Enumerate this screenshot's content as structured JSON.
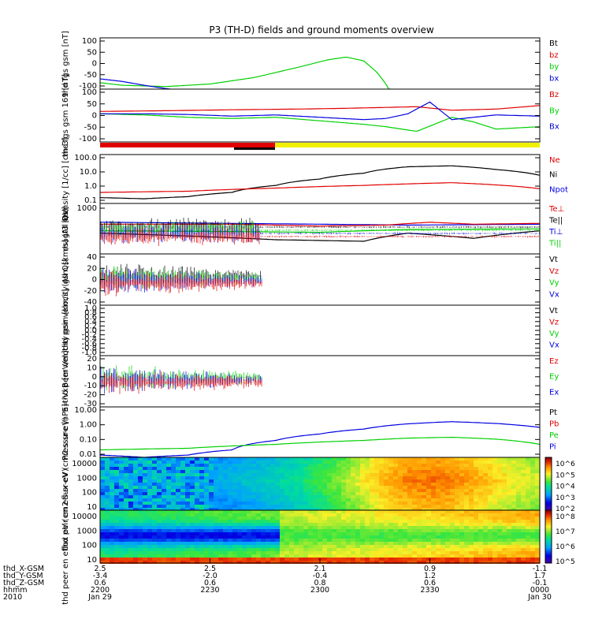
{
  "title": "P3 (TH-D) fields and ground moments overview",
  "colors": {
    "black": "#000000",
    "red": "#e00000",
    "green": "#00d000",
    "blue": "#0000e0",
    "yellow": "#f0f000",
    "frame": "#000000"
  },
  "chart_data": [
    {
      "id": "fgs",
      "type": "line",
      "ylabel": "thd fgs gsm [nT]",
      "ylim": [
        -100,
        100
      ],
      "yticks": [
        "100",
        "50",
        "0",
        "-50",
        "-100"
      ],
      "legend": [
        {
          "name": "Bt",
          "color": "black"
        },
        {
          "name": "bz",
          "color": "red"
        },
        {
          "name": "by",
          "color": "green"
        },
        {
          "name": "bx",
          "color": "blue"
        }
      ],
      "series": [
        {
          "name": "by",
          "color": "green",
          "t": [
            0,
            0.05,
            0.15,
            0.25,
            0.35,
            0.45,
            0.52,
            0.56,
            0.6,
            0.63,
            0.65,
            0.66
          ],
          "y": [
            -75,
            -85,
            -90,
            -80,
            -55,
            -15,
            15,
            25,
            10,
            -35,
            -80,
            -110
          ]
        },
        {
          "name": "bx",
          "color": "blue",
          "t": [
            0,
            0.05,
            0.1,
            0.15,
            0.16
          ],
          "y": [
            -60,
            -70,
            -85,
            -98,
            -100
          ]
        }
      ]
    },
    {
      "id": "fgs_sm",
      "type": "line",
      "ylabel": "thd fgs gsm 169 [nT]",
      "ylim": [
        -125,
        100
      ],
      "yticks": [
        "100",
        "50",
        "0",
        "-50",
        "-100"
      ],
      "legend": [
        {
          "name": "Bz",
          "color": "red"
        },
        {
          "name": "By",
          "color": "green"
        },
        {
          "name": "Bx",
          "color": "blue"
        }
      ],
      "series": [
        {
          "name": "Bz",
          "color": "red",
          "t": [
            0,
            0.15,
            0.3,
            0.45,
            0.55,
            0.65,
            0.72,
            0.8,
            0.9,
            1.0
          ],
          "y": [
            5,
            8,
            12,
            15,
            18,
            22,
            25,
            10,
            15,
            30
          ]
        },
        {
          "name": "By",
          "color": "green",
          "t": [
            0,
            0.1,
            0.2,
            0.3,
            0.4,
            0.5,
            0.6,
            0.65,
            0.72,
            0.8,
            0.85,
            0.9,
            1.0
          ],
          "y": [
            -5,
            -10,
            -20,
            -25,
            -20,
            -35,
            -50,
            -60,
            -80,
            -20,
            -40,
            -70,
            -60
          ]
        },
        {
          "name": "Bx",
          "color": "blue",
          "t": [
            0,
            0.1,
            0.2,
            0.3,
            0.4,
            0.5,
            0.6,
            0.65,
            0.7,
            0.75,
            0.8,
            0.9,
            1.0
          ],
          "y": [
            -5,
            -5,
            -8,
            -15,
            -10,
            -20,
            -30,
            -25,
            -5,
            45,
            -30,
            -10,
            -15
          ]
        }
      ]
    },
    {
      "id": "density",
      "type": "line",
      "ylog": true,
      "ylabel": "Density [1/cc] [cm-3]",
      "ylim": [
        0.05,
        500
      ],
      "yticks": [
        "100.0",
        "10.0",
        "1.0",
        "0.1"
      ],
      "legend": [
        {
          "name": "Ne",
          "color": "red"
        },
        {
          "name": "Ni",
          "color": "black"
        },
        {
          "name": "Npot",
          "color": "blue"
        }
      ],
      "series": [
        {
          "name": "Ni",
          "color": "black",
          "t": [
            0,
            0.1,
            0.2,
            0.3,
            0.4,
            0.5,
            0.6,
            0.7,
            0.8,
            0.9,
            1.0
          ],
          "y": [
            0.15,
            0.12,
            0.18,
            0.4,
            1.5,
            5,
            15,
            50,
            60,
            30,
            10
          ]
        },
        {
          "name": "Ne",
          "color": "red",
          "t": [
            0,
            0.2,
            0.4,
            0.6,
            0.8,
            1.0
          ],
          "y": [
            0.4,
            0.5,
            0.9,
            1.5,
            2.5,
            0.8
          ]
        }
      ]
    },
    {
      "id": "temp",
      "type": "line",
      "ylog": true,
      "ylabel": "magt3 [eV]",
      "ylim": [
        30,
        1500
      ],
      "yticks": [
        "1000"
      ],
      "legend": [
        {
          "name": "Te⊥",
          "color": "red"
        },
        {
          "name": "Te||",
          "color": "black"
        },
        {
          "name": "Ti⊥",
          "color": "blue"
        },
        {
          "name": "Ti||",
          "color": "green"
        }
      ],
      "series": [
        {
          "name": "Ti⊥",
          "color": "blue",
          "t": [
            0,
            0.3,
            0.5,
            0.7,
            1.0
          ],
          "y": [
            350,
            320,
            300,
            280,
            300
          ]
        },
        {
          "name": "Te⊥",
          "color": "red",
          "t": [
            0,
            0.3,
            0.5,
            0.65,
            0.75,
            0.85,
            1.0
          ],
          "y": [
            300,
            300,
            260,
            280,
            350,
            300,
            320
          ]
        },
        {
          "name": "Ti||",
          "color": "green",
          "t": [
            0,
            0.3,
            0.5,
            0.7,
            1.0
          ],
          "y": [
            180,
            170,
            160,
            200,
            210
          ]
        },
        {
          "name": "Te||",
          "color": "black",
          "t": [
            0,
            0.2,
            0.4,
            0.6,
            0.7,
            0.85,
            1.0
          ],
          "y": [
            150,
            120,
            90,
            80,
            150,
            100,
            180
          ]
        }
      ]
    },
    {
      "id": "peir_vel",
      "type": "line",
      "ylabel": "thd peir velocity gsm [km/s] (All Qs)",
      "ylim": [
        -40,
        40
      ],
      "yticks": [
        "40",
        "20",
        "0",
        "-20",
        "-40"
      ],
      "legend": [
        {
          "name": "Vt",
          "color": "black"
        },
        {
          "name": "Vz",
          "color": "red"
        },
        {
          "name": "Vy",
          "color": "green"
        },
        {
          "name": "Vx",
          "color": "blue"
        }
      ],
      "series": []
    },
    {
      "id": "peer_vel",
      "type": "line",
      "ylabel": "thd peer velocity gsm [km/s] (All Qs)",
      "ylim": [
        -1,
        1
      ],
      "yticks": [
        "1.0",
        "0.8",
        "0.6",
        "0.4",
        "0.2",
        "0.0",
        "-0.2",
        "-0.4",
        "-0.6",
        "-0.8",
        "-1.0"
      ],
      "legend": [
        {
          "name": "Vt",
          "color": "black"
        },
        {
          "name": "Vz",
          "color": "red"
        },
        {
          "name": "Vy",
          "color": "green"
        },
        {
          "name": "Vx",
          "color": "blue"
        }
      ],
      "series": []
    },
    {
      "id": "efield",
      "type": "line",
      "ylabel": "E=-VxB [mV/m]",
      "ylim": [
        -30,
        20
      ],
      "yticks": [
        "20",
        "10",
        "0",
        "-10",
        "-20",
        "-30"
      ],
      "legend": [
        {
          "name": "Ez",
          "color": "red"
        },
        {
          "name": "Ey",
          "color": "green"
        },
        {
          "name": "Ex",
          "color": "blue"
        }
      ],
      "series": []
    },
    {
      "id": "pressure",
      "type": "line",
      "ylog": true,
      "ylabel": "Pressure [nPa]",
      "ylim": [
        0.004,
        30
      ],
      "yticks": [
        "10.00",
        "1.00",
        "0.10",
        "0.01"
      ],
      "legend": [
        {
          "name": "Pt",
          "color": "black"
        },
        {
          "name": "Pb",
          "color": "red"
        },
        {
          "name": "Pe",
          "color": "green"
        },
        {
          "name": "Pi",
          "color": "blue"
        }
      ],
      "series": [
        {
          "name": "Pi",
          "color": "blue",
          "t": [
            0,
            0.1,
            0.2,
            0.3,
            0.4,
            0.5,
            0.6,
            0.7,
            0.8,
            0.9,
            1.0
          ],
          "y": [
            0.006,
            0.004,
            0.006,
            0.015,
            0.08,
            0.25,
            0.6,
            1.5,
            2.2,
            1.6,
            0.8
          ]
        },
        {
          "name": "Pe",
          "color": "green",
          "t": [
            0,
            0.2,
            0.4,
            0.6,
            0.7,
            0.8,
            0.9,
            1.0
          ],
          "y": [
            0.015,
            0.02,
            0.04,
            0.08,
            0.12,
            0.14,
            0.1,
            0.04
          ]
        }
      ]
    }
  ],
  "spectrograms": [
    {
      "id": "peir_en",
      "ylabel": "thd peir en eflux eV (cm2-s-sr-eV)",
      "yticks": [
        "10000",
        "1000",
        "100",
        "10"
      ],
      "colorbar": [
        "10^6",
        "10^5",
        "10^4",
        "10^3",
        "10^2"
      ]
    },
    {
      "id": "peer_en",
      "ylabel": "thd peer en eflux eV (cm2-s-sr-eV)",
      "yticks": [
        "10000",
        "1000",
        "100",
        "10"
      ],
      "colorbar": [
        "10^8",
        "10^7",
        "10^6",
        "10^5"
      ]
    }
  ],
  "axis": {
    "rows": [
      {
        "label": "thd_X-GSM",
        "values": [
          "2.5",
          "2.5",
          "2.1",
          "0.9",
          "-1.1"
        ]
      },
      {
        "label": "thd_Y-GSM",
        "values": [
          "-3.4",
          "-2.0",
          "-0.4",
          "1.2",
          "1.7"
        ]
      },
      {
        "label": "thd_Z-GSM",
        "values": [
          "0.6",
          "0.6",
          "0.8",
          "0.6",
          "-0.1"
        ]
      },
      {
        "label": "hhmm",
        "values": [
          "2200",
          "2230",
          "2300",
          "2330",
          "0000"
        ]
      },
      {
        "label": "2010",
        "values": [
          "Jan 29",
          "",
          "",
          "",
          "Jan 30"
        ]
      }
    ]
  }
}
